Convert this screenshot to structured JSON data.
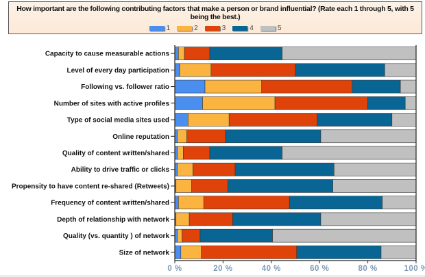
{
  "chart_data": {
    "type": "bar",
    "orientation": "horizontal",
    "stacked": true,
    "title": "How important are the following contributing factors that make a person or brand influential? (Rate each 1 through 5, with 5 being the best.)",
    "xlabel": "",
    "ylabel": "",
    "xlim": [
      0,
      100
    ],
    "x_ticks": [
      "0 %",
      "20 %",
      "40 %",
      "60 %",
      "80 %",
      "100 %"
    ],
    "legend_position": "top",
    "categories": [
      "Capacity to cause measurable actions",
      "Level of  every day participation",
      "Following vs. follower ratio",
      "Number of sites with active profiles",
      "Type of social media sites used",
      "Online reputation",
      "Quality of content written/shared",
      "Ability to drive traffic or clicks",
      "Propensity to have content re-shared (Retweets)",
      "Frequency of content written/shared",
      "Depth of relationship with network",
      "Quality (vs. quantity ) of network",
      "Size of network"
    ],
    "series": [
      {
        "name": "1",
        "color": "#4a8ef0",
        "values": [
          1.5,
          2,
          12.5,
          11.5,
          5.5,
          1,
          1,
          1,
          0.5,
          1.5,
          0.5,
          1,
          2.5
        ]
      },
      {
        "name": "2",
        "color": "#fbb440",
        "values": [
          2.5,
          13,
          23.5,
          30,
          17,
          4,
          2.5,
          6.5,
          6.5,
          10.5,
          5.5,
          2,
          8.5
        ]
      },
      {
        "name": "3",
        "color": "#e0430a",
        "values": [
          10.5,
          35,
          37.5,
          38.5,
          36.5,
          16,
          11,
          17.5,
          15,
          35.5,
          18,
          7.5,
          39.5
        ]
      },
      {
        "name": "4",
        "color": "#096694",
        "values": [
          30,
          37,
          20,
          15.5,
          31,
          39.5,
          30,
          41,
          43.5,
          38.5,
          36.5,
          30,
          35
        ]
      },
      {
        "name": "5",
        "color": "#c0c0c0",
        "values": [
          55.5,
          13,
          6.5,
          4.5,
          10,
          39.5,
          55.5,
          34,
          34.5,
          14,
          39.5,
          59.5,
          14.5
        ]
      }
    ]
  }
}
